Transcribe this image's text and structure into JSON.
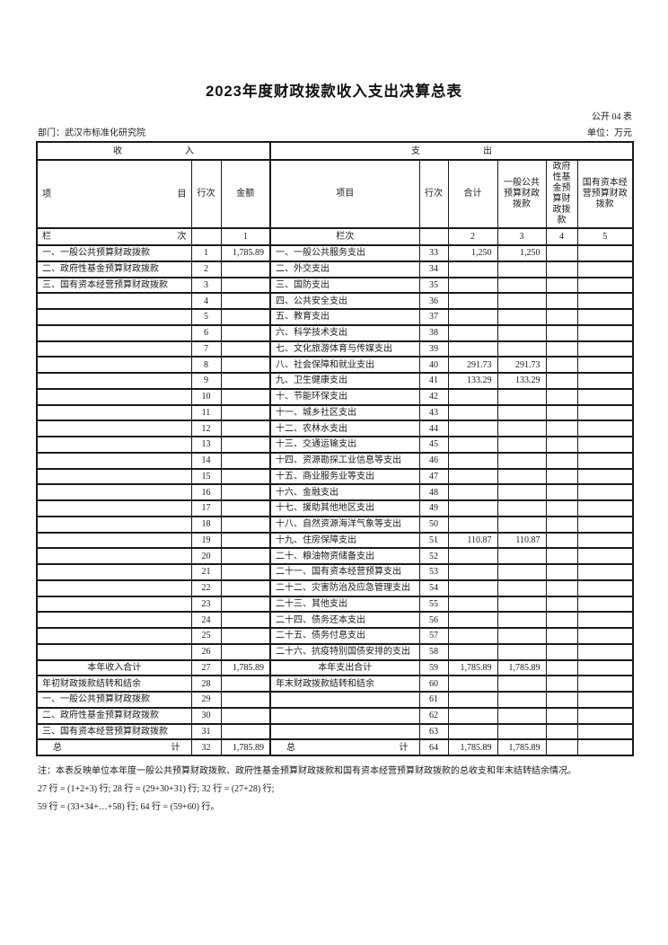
{
  "page": {
    "title": "2023年度财政拨款收入支出决算总表",
    "form_code": "公开 04 表",
    "department": "部门：武汉市标准化研究院",
    "unit": "单位：万元"
  },
  "table": {
    "sections": {
      "income": "收入",
      "expense": "支出"
    },
    "headers": {
      "income_item": "项目",
      "income_rowno": "行次",
      "income_amount": "金额",
      "expense_item": "项目",
      "expense_rowno": "行次",
      "expense_total": "合计",
      "expense_general": "一般公共预算财政拨款",
      "expense_govfund": "政府性基金预算财政拨款",
      "expense_capital": "国有资本经营预算财政拨款"
    },
    "lane": {
      "income_label": "栏次",
      "amount_no": "1",
      "expense_label": "栏次",
      "total_no": "2",
      "general_no": "3",
      "govfund_no": "4",
      "capital_no": "5"
    },
    "rows": [
      {
        "ii": "一、一般公共预算财政拨款",
        "ir": "1",
        "iv": "1,785.89",
        "ei": "一、一般公共服务支出",
        "er": "33",
        "et": "1,250",
        "eg": "1,250"
      },
      {
        "ii": "二、政府性基金预算财政拨款",
        "ir": "2",
        "ei": "二、外交支出",
        "er": "34"
      },
      {
        "ii": "三、国有资本经营预算财政拨款",
        "ir": "3",
        "ei": "三、国防支出",
        "er": "35"
      },
      {
        "ir": "4",
        "ei": "四、公共安全支出",
        "er": "36"
      },
      {
        "ir": "5",
        "ei": "五、教育支出",
        "er": "37"
      },
      {
        "ir": "6",
        "ei": "六、科学技术支出",
        "er": "38"
      },
      {
        "ir": "7",
        "ei": "七、文化旅游体育与传媒支出",
        "er": "39"
      },
      {
        "ir": "8",
        "ei": "八、社会保障和就业支出",
        "er": "40",
        "et": "291.73",
        "eg": "291.73"
      },
      {
        "ir": "9",
        "ei": "九、卫生健康支出",
        "er": "41",
        "et": "133.29",
        "eg": "133.29"
      },
      {
        "ir": "10",
        "ei": "十、节能环保支出",
        "er": "42"
      },
      {
        "ir": "11",
        "ei": "十一、城乡社区支出",
        "er": "43"
      },
      {
        "ir": "12",
        "ei": "十二、农林水支出",
        "er": "44"
      },
      {
        "ir": "13",
        "ei": "十三、交通运输支出",
        "er": "45"
      },
      {
        "ir": "14",
        "ei": "十四、资源勘探工业信息等支出",
        "er": "46"
      },
      {
        "ir": "15",
        "ei": "十五、商业服务业等支出",
        "er": "47"
      },
      {
        "ir": "16",
        "ei": "十六、金融支出",
        "er": "48"
      },
      {
        "ir": "17",
        "ei": "十七、援助其他地区支出",
        "er": "49"
      },
      {
        "ir": "18",
        "ei": "十八、自然资源海洋气象等支出",
        "er": "50"
      },
      {
        "ir": "19",
        "ei": "十九、住房保障支出",
        "er": "51",
        "et": "110.87",
        "eg": "110.87"
      },
      {
        "ir": "20",
        "ei": "二十、粮油物资储备支出",
        "er": "52"
      },
      {
        "ir": "21",
        "ei": "二十一、国有资本经营预算支出",
        "er": "53"
      },
      {
        "ir": "22",
        "ei": "二十二、灾害防治及应急管理支出",
        "er": "54"
      },
      {
        "ir": "23",
        "ei": "二十三、其他支出",
        "er": "55"
      },
      {
        "ir": "24",
        "ei": "二十四、债务还本支出",
        "er": "56"
      },
      {
        "ir": "25",
        "ei": "二十五、债务付息支出",
        "er": "57"
      },
      {
        "ir": "26",
        "ei": "二十六、抗疫特别国债安排的支出",
        "er": "58"
      },
      {
        "ii": "本年收入合计",
        "ia": "c",
        "ir": "27",
        "iv": "1,785.89",
        "ei": "本年支出合计",
        "ea": "c",
        "er": "59",
        "et": "1,785.89",
        "eg": "1,785.89"
      },
      {
        "ii": "年初财政拨款结转和结余",
        "ir": "28",
        "ei": "年末财政拨款结转和结余",
        "er": "60"
      },
      {
        "ii": "一、一般公共预算财政拨款",
        "ir": "29",
        "er": "61"
      },
      {
        "ii": "二、政府性基金预算财政拨款",
        "ir": "30",
        "er": "62"
      },
      {
        "ii": "三、国有资本经营预算财政拨款",
        "ir": "31",
        "er": "63"
      },
      {
        "ii": "总计",
        "ia": "j",
        "ir": "32",
        "iv": "1,785.89",
        "ei": "总计",
        "ea": "j",
        "er": "64",
        "et": "1,785.89",
        "eg": "1,785.89"
      }
    ]
  },
  "notes": [
    "注：本表反映单位本年度一般公共预算财政拨款、政府性基金预算财政拨款和国有资本经营预算财政拨款的总收支和年末结转结余情况。",
    "27 行 = (1+2+3) 行;  28 行 = (29+30+31) 行;  32 行 = (27+28) 行;",
    "59 行 = (33+34+…+58) 行;  64 行 = (59+60) 行。"
  ]
}
